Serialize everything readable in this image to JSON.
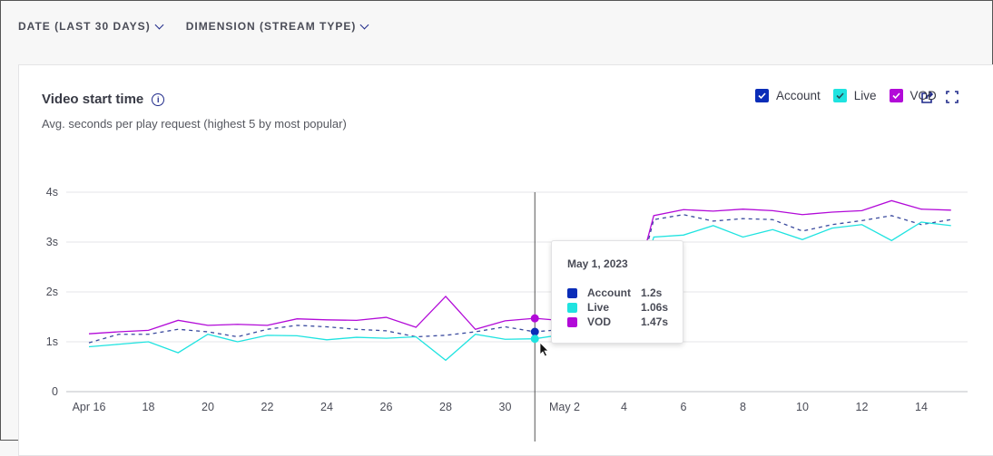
{
  "filters": [
    {
      "label": "DATE (LAST 30 DAYS)"
    },
    {
      "label": "DIMENSION (STREAM TYPE)"
    }
  ],
  "card": {
    "title": "Video start time",
    "info_icon": "info-icon",
    "subtitle": "Avg. seconds per play request (highest 5 by most popular)",
    "actions": [
      "share-icon",
      "fullscreen-icon"
    ]
  },
  "colors": {
    "Account": "#0a2db8",
    "Live": "#1fe3e0",
    "VOD": "#b20ad8"
  },
  "legend": [
    {
      "label": "Account",
      "checked": true
    },
    {
      "label": "Live",
      "checked": true
    },
    {
      "label": "VOD",
      "checked": true
    }
  ],
  "tooltip": {
    "date": "May 1, 2023",
    "rows": [
      {
        "name": "Account",
        "value": "1.2s"
      },
      {
        "name": "Live",
        "value": "1.06s"
      },
      {
        "name": "VOD",
        "value": "1.47s"
      }
    ]
  },
  "chart_data": {
    "type": "line",
    "x": [
      "Apr 16",
      "Apr 17",
      "Apr 18",
      "Apr 19",
      "Apr 20",
      "Apr 21",
      "Apr 22",
      "Apr 23",
      "Apr 24",
      "Apr 25",
      "Apr 26",
      "Apr 27",
      "Apr 28",
      "Apr 29",
      "Apr 30",
      "May 1",
      "May 2",
      "May 3",
      "May 4",
      "May 5",
      "May 6",
      "May 7",
      "May 8",
      "May 9",
      "May 10",
      "May 11",
      "May 12",
      "May 13",
      "May 14",
      "May 15"
    ],
    "x_tick_labels": [
      "Apr 16",
      "18",
      "20",
      "22",
      "24",
      "26",
      "28",
      "30",
      "May 2",
      "4",
      "6",
      "8",
      "10",
      "12",
      "14"
    ],
    "y_tick_labels": [
      "0",
      "1s",
      "2s",
      "3s",
      "4s"
    ],
    "ylim": [
      0,
      4
    ],
    "grid": true,
    "legend_placement": "top-right",
    "series": [
      {
        "name": "Account",
        "style": "dashed",
        "values": [
          0.98,
          1.15,
          1.15,
          1.25,
          1.2,
          1.1,
          1.25,
          1.33,
          1.3,
          1.25,
          1.22,
          1.1,
          1.13,
          1.2,
          1.3,
          1.2,
          1.25,
          1.2,
          1.15,
          3.45,
          3.55,
          3.42,
          3.47,
          3.45,
          3.22,
          3.35,
          3.43,
          3.53,
          3.35,
          3.45
        ]
      },
      {
        "name": "Live",
        "style": "solid",
        "values": [
          0.9,
          0.95,
          1.0,
          0.78,
          1.15,
          1.0,
          1.13,
          1.12,
          1.04,
          1.09,
          1.07,
          1.1,
          0.63,
          1.15,
          1.05,
          1.06,
          1.15,
          1.1,
          1.0,
          3.1,
          3.14,
          3.33,
          3.1,
          3.25,
          3.05,
          3.28,
          3.35,
          3.03,
          3.4,
          3.33
        ]
      },
      {
        "name": "VOD",
        "style": "solid",
        "values": [
          1.16,
          1.2,
          1.23,
          1.43,
          1.33,
          1.35,
          1.33,
          1.46,
          1.44,
          1.43,
          1.49,
          1.29,
          1.91,
          1.25,
          1.42,
          1.47,
          1.42,
          1.35,
          1.3,
          3.53,
          3.65,
          3.62,
          3.66,
          3.63,
          3.55,
          3.6,
          3.63,
          3.83,
          3.66,
          3.64
        ]
      }
    ],
    "hover_index": 15
  }
}
